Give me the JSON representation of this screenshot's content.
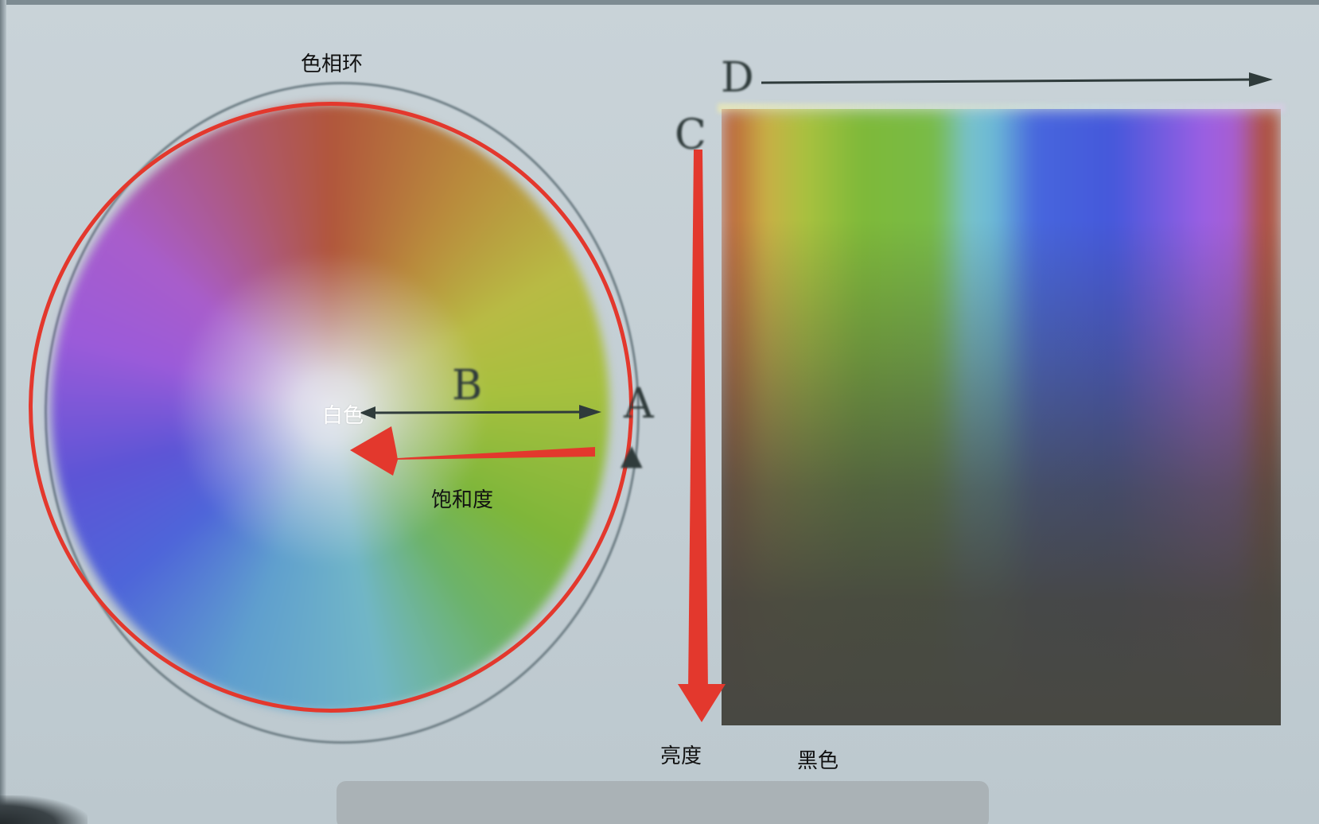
{
  "labels": {
    "hue_ring": "色相环",
    "white": "白色",
    "saturation": "饱和度",
    "brightness": "亮度",
    "black": "黑色"
  },
  "letters": {
    "a": "A",
    "b": "B",
    "c": "C",
    "d": "D"
  },
  "colors": {
    "annotation_red": "#e3382d",
    "ink_dark": "#2f3b3b",
    "background": "#c7d1d6"
  }
}
